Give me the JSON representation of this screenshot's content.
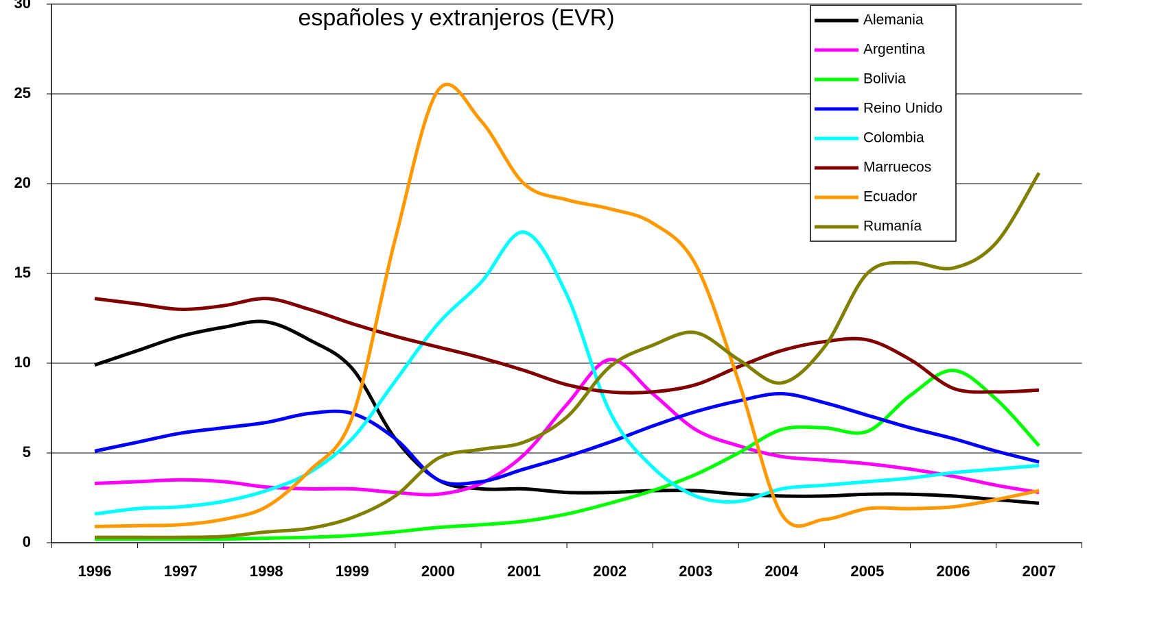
{
  "chart_data": {
    "type": "line",
    "title": "españoles y extranjeros (EVR)",
    "categories": [
      "1996",
      null,
      "1997",
      null,
      "1998",
      null,
      "1999",
      null,
      "2000",
      null,
      "2001",
      null,
      "2002",
      null,
      "2003",
      null,
      "2004",
      null,
      "2005",
      null,
      "2006",
      null,
      "2007"
    ],
    "series": [
      {
        "name": "Alemania",
        "color": "#000000",
        "values": [
          9.9,
          10.7,
          11.5,
          12.0,
          12.3,
          11.3,
          9.7,
          5.8,
          3.5,
          3.0,
          3.0,
          2.8,
          2.8,
          2.9,
          2.9,
          2.7,
          2.6,
          2.6,
          2.7,
          2.7,
          2.6,
          2.4,
          2.2
        ]
      },
      {
        "name": "Argentina",
        "color": "#ff00ff",
        "values": [
          3.3,
          3.4,
          3.5,
          3.4,
          3.1,
          3.0,
          3.0,
          2.8,
          2.7,
          3.3,
          4.9,
          7.7,
          10.2,
          8.3,
          6.3,
          5.4,
          4.8,
          4.6,
          4.4,
          4.1,
          3.7,
          3.2,
          2.8
        ]
      },
      {
        "name": "Bolivia",
        "color": "#00ff00",
        "values": [
          0.2,
          0.2,
          0.2,
          0.2,
          0.25,
          0.3,
          0.4,
          0.6,
          0.85,
          1.0,
          1.2,
          1.6,
          2.2,
          2.9,
          3.8,
          5.0,
          6.3,
          6.4,
          6.2,
          8.2,
          9.6,
          8.0,
          5.4
        ]
      },
      {
        "name": "Reino Unido",
        "color": "#0000ff",
        "values": [
          5.1,
          5.6,
          6.1,
          6.4,
          6.7,
          7.2,
          7.2,
          5.8,
          3.5,
          3.4,
          4.1,
          4.8,
          5.6,
          6.5,
          7.3,
          7.9,
          8.3,
          7.8,
          7.1,
          6.4,
          5.8,
          5.1,
          4.5
        ]
      },
      {
        "name": "Colombia",
        "color": "#00ffff",
        "values": [
          1.6,
          1.9,
          2.0,
          2.3,
          2.9,
          3.9,
          5.8,
          9.0,
          12.2,
          14.5,
          17.3,
          13.8,
          7.3,
          4.2,
          2.6,
          2.3,
          3.0,
          3.2,
          3.4,
          3.6,
          3.9,
          4.1,
          4.3
        ]
      },
      {
        "name": "Marruecos",
        "color": "#800000",
        "values": [
          13.6,
          13.3,
          13.0,
          13.2,
          13.6,
          13.0,
          12.2,
          11.5,
          10.9,
          10.3,
          9.6,
          8.8,
          8.4,
          8.4,
          8.8,
          9.8,
          10.7,
          11.2,
          11.3,
          10.2,
          8.6,
          8.4,
          8.5
        ]
      },
      {
        "name": "Ecuador",
        "color": "#ff9900",
        "values": [
          0.9,
          0.95,
          1.0,
          1.3,
          2.0,
          4.0,
          7.0,
          16.9,
          25.2,
          23.5,
          20.0,
          19.1,
          18.6,
          17.8,
          15.5,
          9.0,
          1.6,
          1.3,
          1.9,
          1.9,
          2.0,
          2.4,
          2.9
        ]
      },
      {
        "name": "Rumanía",
        "color": "#808000",
        "values": [
          0.3,
          0.3,
          0.3,
          0.35,
          0.6,
          0.8,
          1.4,
          2.6,
          4.7,
          5.2,
          5.6,
          7.0,
          9.8,
          11.0,
          11.7,
          10.2,
          8.9,
          10.9,
          15.0,
          15.6,
          15.3,
          16.7,
          20.6
        ]
      }
    ],
    "ylim": [
      0,
      30
    ],
    "yticks": [
      0,
      5,
      10,
      15,
      20,
      25,
      30
    ],
    "grid": true
  }
}
